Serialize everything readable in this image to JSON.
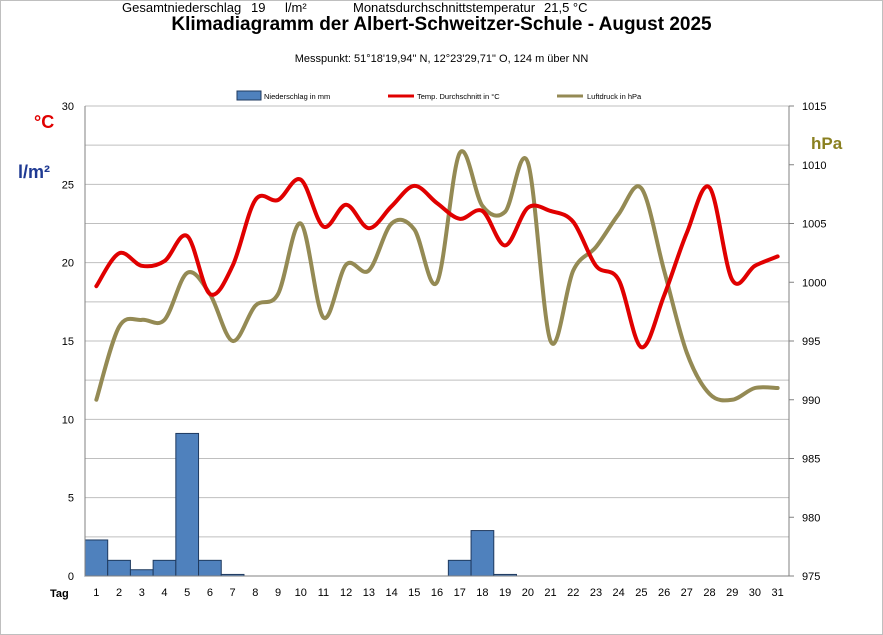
{
  "title": "Klimadiagramm der Albert-Schweitzer-Schule    -   August 2025",
  "subtitle": "Messpunkt:  51°18'19,94\" N,  12°23'29,71\" O,  124 m über NN",
  "units": {
    "temp": "°C",
    "precip": "l/m²",
    "pressure": "hPa",
    "x": "Tag"
  },
  "footer": {
    "total_precip_label": "Gesamtniederschlag",
    "total_precip_value": "19",
    "total_precip_unit": "l/m²",
    "avg_temp_label": "Monatsdurchschnittstemperatur",
    "avg_temp_value": "21,5 °C"
  },
  "colors": {
    "precip": "#4f81bd",
    "temp": "#e00000",
    "pressure": "#948a54",
    "grid": "#bfbfbf"
  },
  "chart_data": {
    "type": "bar+line",
    "x": [
      1,
      2,
      3,
      4,
      5,
      6,
      7,
      8,
      9,
      10,
      11,
      12,
      13,
      14,
      15,
      16,
      17,
      18,
      19,
      20,
      21,
      22,
      23,
      24,
      25,
      26,
      27,
      28,
      29,
      30,
      31
    ],
    "xlabel": "Tag",
    "left_axis": {
      "ylim": [
        0,
        30
      ],
      "ticks": [
        0,
        5,
        10,
        15,
        20,
        25,
        30
      ]
    },
    "right_axis": {
      "ylim": [
        975,
        1015
      ],
      "ticks": [
        975,
        980,
        985,
        990,
        995,
        1000,
        1005,
        1010,
        1015
      ]
    },
    "grid": true,
    "legend_position": "top",
    "series": [
      {
        "name": "Niederschlag in mm",
        "kind": "bar",
        "axis": "left",
        "values": [
          2.3,
          1.0,
          0.4,
          1.0,
          9.1,
          1.0,
          0.1,
          0,
          0,
          0,
          0,
          0,
          0,
          0,
          0,
          0,
          1.0,
          2.9,
          0.1,
          0,
          0,
          0,
          0,
          0,
          0,
          0,
          0,
          0,
          0,
          0,
          0
        ]
      },
      {
        "name": "Temp. Durchschnitt in °C",
        "kind": "line",
        "axis": "left",
        "values": [
          18.5,
          20.6,
          19.8,
          20.1,
          21.7,
          18.0,
          19.8,
          24.0,
          24.0,
          25.3,
          22.3,
          23.7,
          22.2,
          23.6,
          24.9,
          23.8,
          22.8,
          23.3,
          21.1,
          23.5,
          23.3,
          22.6,
          19.8,
          18.9,
          14.6,
          17.9,
          21.9,
          24.8,
          18.9,
          19.8,
          20.4
        ]
      },
      {
        "name": "Luftdruck in hPa",
        "kind": "line",
        "axis": "right",
        "values": [
          990.0,
          996.2,
          996.8,
          996.8,
          1000.8,
          999.0,
          995.0,
          998.0,
          999.0,
          1005.0,
          997.0,
          1001.5,
          1001.0,
          1005.0,
          1004.5,
          1000.0,
          1011.0,
          1006.5,
          1006.0,
          1010.2,
          995.0,
          1001.0,
          1003.0,
          1005.8,
          1008.0,
          1001.0,
          994.0,
          990.5,
          990.0,
          991.0,
          991.0
        ]
      }
    ]
  }
}
